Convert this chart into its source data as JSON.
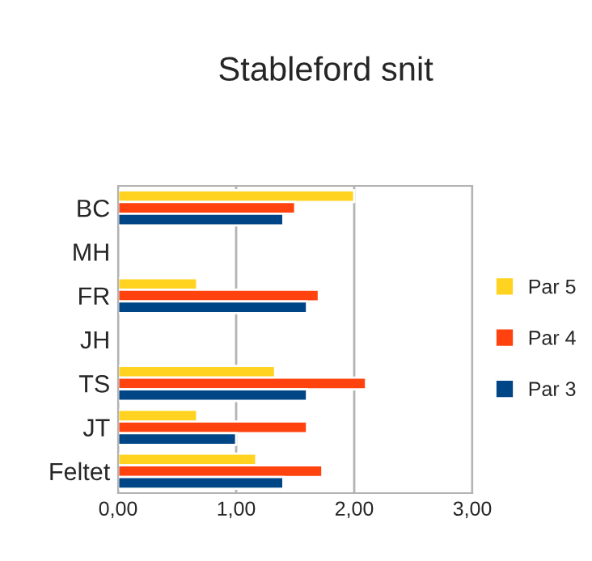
{
  "chart_data": {
    "type": "bar",
    "orientation": "horizontal",
    "title": "Stableford snit",
    "categories": [
      "BC",
      "MH",
      "FR",
      "JH",
      "TS",
      "JT",
      "Feltet"
    ],
    "series": [
      {
        "name": "Par 5",
        "color": "#ffd320",
        "values": [
          2.0,
          null,
          0.67,
          null,
          1.33,
          0.67,
          1.17
        ]
      },
      {
        "name": "Par 4",
        "color": "#ff420e",
        "values": [
          1.5,
          null,
          1.7,
          null,
          2.1,
          1.6,
          1.73
        ]
      },
      {
        "name": "Par 3",
        "color": "#004586",
        "values": [
          1.4,
          null,
          1.6,
          null,
          1.6,
          1.0,
          1.4
        ]
      }
    ],
    "xlim": [
      0,
      3
    ],
    "xticks": [
      {
        "value": 0,
        "label": "0,00"
      },
      {
        "value": 1,
        "label": "1,00"
      },
      {
        "value": 2,
        "label": "2,00"
      },
      {
        "value": 3,
        "label": "3,00"
      }
    ],
    "grid": "x",
    "legend": "right"
  }
}
